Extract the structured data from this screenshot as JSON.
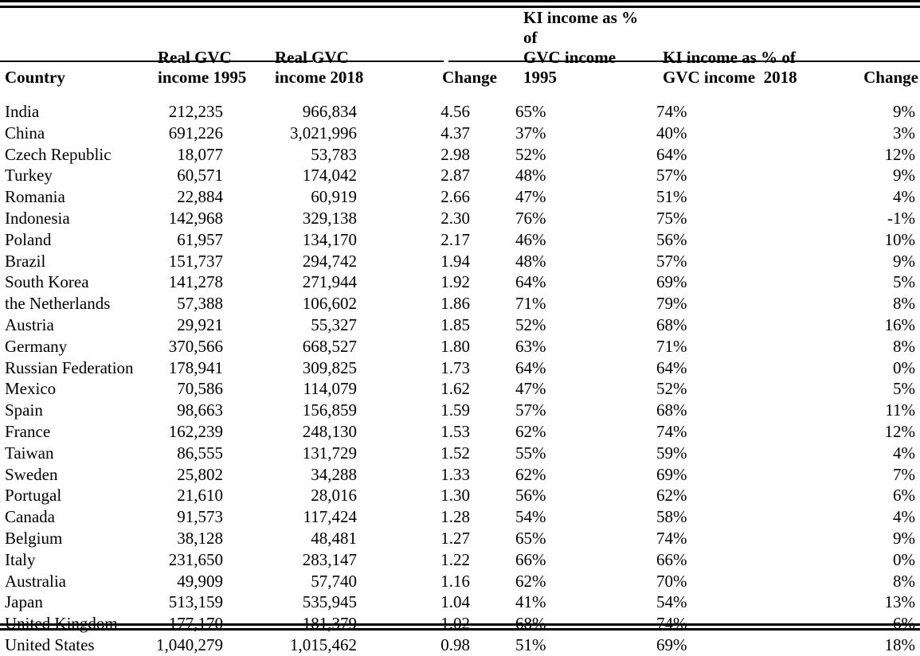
{
  "page": {
    "background": "#ffffff",
    "text_color": "#000000",
    "rule_color": "#000000"
  },
  "table": {
    "columns": [
      "Country",
      "Real GVC\nincome 1995",
      "Real GVC\nincome 2018",
      "Change",
      "KI income as % of\nGVC income  1995",
      "KI income as % of\nGVC income  2018",
      "Change"
    ],
    "rows": [
      [
        "India",
        "212,235",
        "966,834",
        "4.56",
        "65%",
        "74%",
        "9%"
      ],
      [
        "China",
        "691,226",
        "3,021,996",
        "4.37",
        "37%",
        "40%",
        "3%"
      ],
      [
        "Czech Republic",
        "18,077",
        "53,783",
        "2.98",
        "52%",
        "64%",
        "12%"
      ],
      [
        "Turkey",
        "60,571",
        "174,042",
        "2.87",
        "48%",
        "57%",
        "9%"
      ],
      [
        "Romania",
        "22,884",
        "60,919",
        "2.66",
        "47%",
        "51%",
        "4%"
      ],
      [
        "Indonesia",
        "142,968",
        "329,138",
        "2.30",
        "76%",
        "75%",
        "-1%"
      ],
      [
        "Poland",
        "61,957",
        "134,170",
        "2.17",
        "46%",
        "56%",
        "10%"
      ],
      [
        "Brazil",
        "151,737",
        "294,742",
        "1.94",
        "48%",
        "57%",
        "9%"
      ],
      [
        "South Korea",
        "141,278",
        "271,944",
        "1.92",
        "64%",
        "69%",
        "5%"
      ],
      [
        "the Netherlands",
        "57,388",
        "106,602",
        "1.86",
        "71%",
        "79%",
        "8%"
      ],
      [
        "Austria",
        "29,921",
        "55,327",
        "1.85",
        "52%",
        "68%",
        "16%"
      ],
      [
        "Germany",
        "370,566",
        "668,527",
        "1.80",
        "63%",
        "71%",
        "8%"
      ],
      [
        "Russian Federation",
        "178,941",
        "309,825",
        "1.73",
        "64%",
        "64%",
        "0%"
      ],
      [
        "Mexico",
        "70,586",
        "114,079",
        "1.62",
        "47%",
        "52%",
        "5%"
      ],
      [
        "Spain",
        "98,663",
        "156,859",
        "1.59",
        "57%",
        "68%",
        "11%"
      ],
      [
        "France",
        "162,239",
        "248,130",
        "1.53",
        "62%",
        "74%",
        "12%"
      ],
      [
        "Taiwan",
        "86,555",
        "131,729",
        "1.52",
        "55%",
        "59%",
        "4%"
      ],
      [
        "Sweden",
        "25,802",
        "34,288",
        "1.33",
        "62%",
        "69%",
        "7%"
      ],
      [
        "Portugal",
        "21,610",
        "28,016",
        "1.30",
        "56%",
        "62%",
        "6%"
      ],
      [
        "Canada",
        "91,573",
        "117,424",
        "1.28",
        "54%",
        "58%",
        "4%"
      ],
      [
        "Belgium",
        "38,128",
        "48,481",
        "1.27",
        "65%",
        "74%",
        "9%"
      ],
      [
        "Italy",
        "231,650",
        "283,147",
        "1.22",
        "66%",
        "66%",
        "0%"
      ],
      [
        "Australia",
        "49,909",
        "57,740",
        "1.16",
        "62%",
        "70%",
        "8%"
      ],
      [
        "Japan",
        "513,159",
        "535,945",
        "1.04",
        "41%",
        "54%",
        "13%"
      ],
      [
        "United Kingdom",
        "177,170",
        "181,379",
        "1.02",
        "68%",
        "74%",
        "6%"
      ],
      [
        "United States",
        "1,040,279",
        "1,015,462",
        "0.98",
        "51%",
        "69%",
        "18%"
      ]
    ]
  }
}
